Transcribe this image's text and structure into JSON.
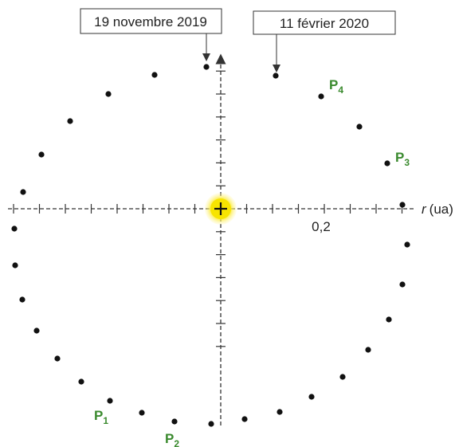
{
  "callouts": {
    "left": "19 novembre 2019",
    "right": "11 février 2020"
  },
  "axis": {
    "r_symbol": "r",
    "r_unit": "(ua)",
    "tick_value_label": "0,2"
  },
  "point_labels": [
    {
      "base": "P",
      "sub": "1"
    },
    {
      "base": "P",
      "sub": "2"
    },
    {
      "base": "P",
      "sub": "3"
    },
    {
      "base": "P",
      "sub": "4"
    }
  ],
  "colors": {
    "sun_core": "#f5e600",
    "sun_glow": "#fff39a",
    "label_green": "#3a8a2e",
    "dots": "#111111",
    "axes": "#333333"
  },
  "sun": {
    "marker": "+"
  }
}
